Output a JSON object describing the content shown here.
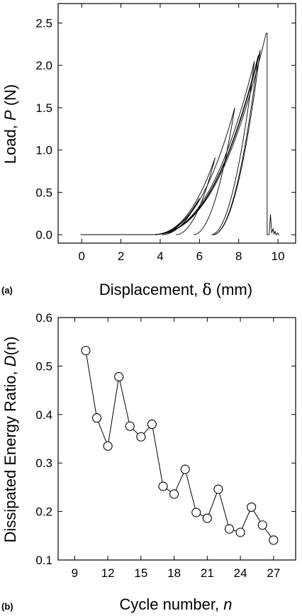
{
  "chart_data": [
    {
      "type": "line",
      "panel_label": "(a)",
      "xlabel_main": "Displacement, ",
      "xlabel_symbol": "δ",
      "xlabel_unit": " (mm)",
      "ylabel_main": "Load, ",
      "ylabel_symbol": "P",
      "ylabel_unit": " (N)",
      "xlim": [
        -1.2,
        10.9
      ],
      "ylim": [
        -0.1,
        2.73
      ],
      "xticks": [
        "0",
        "2",
        "4",
        "6",
        "8",
        "10"
      ],
      "yticks": [
        "0.0",
        "0.5",
        "1.0",
        "1.5",
        "2.0",
        "2.5"
      ],
      "xtick_values": [
        0,
        2,
        4,
        6,
        8,
        10
      ],
      "ytick_values": [
        0.0,
        0.5,
        1.0,
        1.5,
        2.0,
        2.5
      ],
      "grid": false,
      "cycles": [
        {
          "peak_x": 5.0,
          "peak_y": 0.13
        },
        {
          "peak_x": 6.0,
          "peak_y": 0.43
        },
        {
          "peak_x": 6.8,
          "peak_y": 0.91
        },
        {
          "peak_x": 7.8,
          "peak_y": 1.5
        },
        {
          "peak_x": 8.8,
          "peak_y": 2.05
        },
        {
          "peak_x": 9.0,
          "peak_y": 2.12
        },
        {
          "peak_x": 9.1,
          "peak_y": 2.18
        },
        {
          "peak_x": 9.4,
          "peak_y": 2.38
        }
      ],
      "failure_x": 9.45
    },
    {
      "type": "line",
      "panel_label": "(b)",
      "xlabel_main": "Cycle number, ",
      "xlabel_symbol": "n",
      "ylabel_main": "Dissipated Energy Ratio, ",
      "ylabel_symbol": "D",
      "ylabel_paren": "(n)",
      "xlim": [
        7.5,
        29
      ],
      "ylim": [
        0.1,
        0.6
      ],
      "xticks": [
        "9",
        "12",
        "15",
        "18",
        "21",
        "24",
        "27"
      ],
      "yticks": [
        "0.1",
        "0.2",
        "0.3",
        "0.4",
        "0.5",
        "0.6"
      ],
      "xtick_values": [
        9,
        12,
        15,
        18,
        21,
        24,
        27
      ],
      "ytick_values": [
        0.1,
        0.2,
        0.3,
        0.4,
        0.5,
        0.6
      ],
      "grid": false,
      "marker": "open-circle",
      "x": [
        10,
        11,
        12,
        13,
        14,
        15,
        16,
        17,
        18,
        19,
        20,
        21,
        22,
        23,
        24,
        25,
        26,
        27
      ],
      "y": [
        0.532,
        0.393,
        0.335,
        0.478,
        0.376,
        0.354,
        0.38,
        0.252,
        0.236,
        0.287,
        0.198,
        0.186,
        0.246,
        0.164,
        0.157,
        0.209,
        0.172,
        0.141
      ]
    }
  ]
}
